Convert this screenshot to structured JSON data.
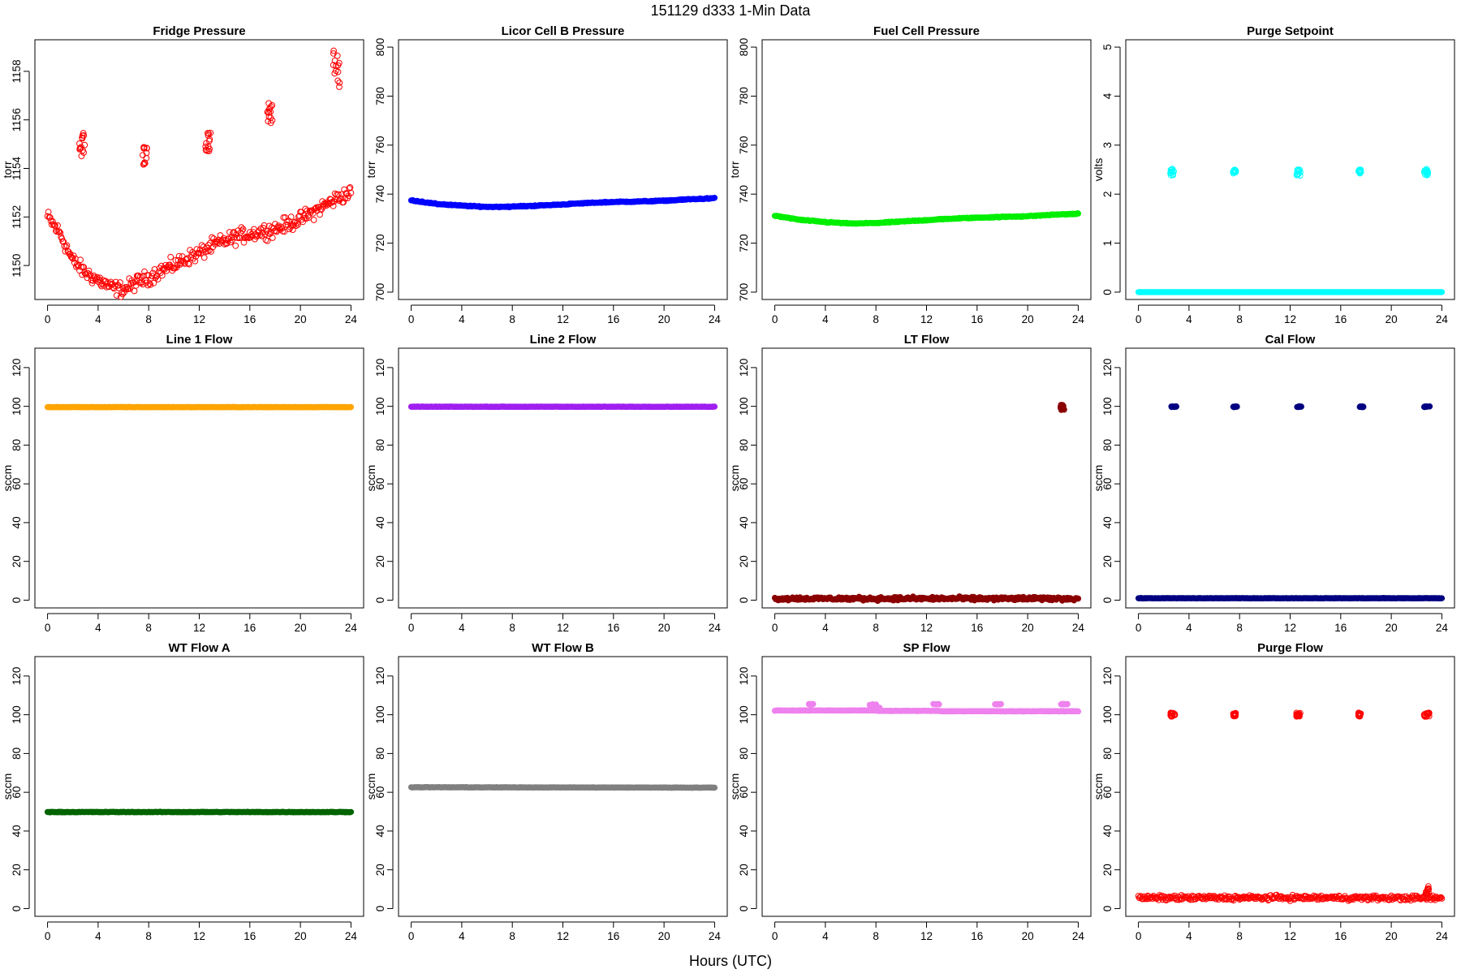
{
  "header": {
    "title": "151129   d333   1-Min Data",
    "xlabel": "Hours (UTC)"
  },
  "chart_data": [
    {
      "type": "scatter",
      "title": "Fridge Pressure",
      "ylabel": "torr",
      "color": "#ff0000",
      "fill": "none",
      "xlim": [
        -1,
        25
      ],
      "ylim": [
        1148.6,
        1159.3
      ],
      "xticks": [
        0,
        4,
        8,
        12,
        16,
        20,
        24
      ],
      "yticks": [
        1150,
        1152,
        1154,
        1156,
        1158
      ],
      "baseline": [
        [
          0,
          1152.0
        ],
        [
          1,
          1151.3
        ],
        [
          2,
          1150.2
        ],
        [
          3,
          1149.7
        ],
        [
          4,
          1149.4
        ],
        [
          5,
          1149.1
        ],
        [
          6,
          1149.0
        ],
        [
          7,
          1149.3
        ],
        [
          8,
          1149.5
        ],
        [
          9,
          1149.8
        ],
        [
          10,
          1150.0
        ],
        [
          11,
          1150.3
        ],
        [
          12,
          1150.5
        ],
        [
          13,
          1150.8
        ],
        [
          14,
          1151.0
        ],
        [
          15,
          1151.2
        ],
        [
          16,
          1151.3
        ],
        [
          17,
          1151.4
        ],
        [
          18,
          1151.5
        ],
        [
          19,
          1151.7
        ],
        [
          20,
          1151.9
        ],
        [
          21,
          1152.2
        ],
        [
          22,
          1152.5
        ],
        [
          23,
          1152.8
        ],
        [
          24,
          1153.0
        ]
      ],
      "spread": 0.45,
      "spikes": [
        {
          "x": [
            2.5,
            3.0
          ],
          "y": [
            1154.3,
            1155.5
          ]
        },
        {
          "x": [
            7.5,
            7.9
          ],
          "y": [
            1154.1,
            1154.9
          ]
        },
        {
          "x": [
            12.5,
            12.9
          ],
          "y": [
            1154.7,
            1155.5
          ]
        },
        {
          "x": [
            17.4,
            17.8
          ],
          "y": [
            1155.8,
            1156.8
          ]
        },
        {
          "x": [
            22.6,
            23.1
          ],
          "y": [
            1157.0,
            1159.0
          ]
        }
      ]
    },
    {
      "type": "scatter",
      "title": "Licor Cell B Pressure",
      "ylabel": "torr",
      "color": "#0000ff",
      "fill": "solid",
      "xlim": [
        -1,
        25
      ],
      "ylim": [
        697,
        803
      ],
      "xticks": [
        0,
        4,
        8,
        12,
        16,
        20,
        24
      ],
      "yticks": [
        700,
        720,
        740,
        760,
        780,
        800
      ],
      "baseline": [
        [
          0,
          737.5
        ],
        [
          2,
          736.0
        ],
        [
          4,
          735.3
        ],
        [
          6,
          734.8
        ],
        [
          8,
          734.9
        ],
        [
          10,
          735.3
        ],
        [
          12,
          735.8
        ],
        [
          14,
          736.4
        ],
        [
          16,
          736.8
        ],
        [
          18,
          737.0
        ],
        [
          20,
          737.3
        ],
        [
          22,
          737.9
        ],
        [
          24,
          738.3
        ]
      ],
      "spread": 0.3
    },
    {
      "type": "scatter",
      "title": "Fuel Cell Pressure",
      "ylabel": "torr",
      "color": "#00ee00",
      "fill": "solid",
      "xlim": [
        -1,
        25
      ],
      "ylim": [
        697,
        803
      ],
      "xticks": [
        0,
        4,
        8,
        12,
        16,
        20,
        24
      ],
      "yticks": [
        700,
        720,
        740,
        760,
        780,
        800
      ],
      "baseline": [
        [
          0,
          731.2
        ],
        [
          2,
          729.5
        ],
        [
          4,
          728.6
        ],
        [
          6,
          728.0
        ],
        [
          8,
          728.2
        ],
        [
          10,
          728.8
        ],
        [
          12,
          729.4
        ],
        [
          14,
          730.0
        ],
        [
          16,
          730.4
        ],
        [
          18,
          730.7
        ],
        [
          20,
          731.0
        ],
        [
          22,
          731.6
        ],
        [
          24,
          732.0
        ]
      ],
      "spread": 0.3
    },
    {
      "type": "scatter",
      "title": "Purge Setpoint",
      "ylabel": "volts",
      "color": "#00ffff",
      "fill": "solid",
      "xlim": [
        -1,
        25
      ],
      "ylim": [
        -0.15,
        5.15
      ],
      "xticks": [
        0,
        4,
        8,
        12,
        16,
        20,
        24
      ],
      "yticks": [
        0,
        1,
        2,
        3,
        4,
        5
      ],
      "baseline": [
        [
          0,
          0
        ],
        [
          24,
          0
        ]
      ],
      "spread": 0,
      "spikes": [
        {
          "x": [
            2.5,
            2.8
          ],
          "y": [
            2.38,
            2.52
          ],
          "open": true
        },
        {
          "x": [
            7.5,
            7.7
          ],
          "y": [
            2.42,
            2.5
          ],
          "open": true
        },
        {
          "x": [
            12.5,
            12.8
          ],
          "y": [
            2.38,
            2.52
          ],
          "open": true
        },
        {
          "x": [
            17.4,
            17.6
          ],
          "y": [
            2.42,
            2.5
          ],
          "open": true
        },
        {
          "x": [
            22.6,
            22.9
          ],
          "y": [
            2.38,
            2.52
          ],
          "open": true
        }
      ]
    },
    {
      "type": "scatter",
      "title": "Line 1 Flow",
      "ylabel": "sccm",
      "color": "#ffa500",
      "fill": "solid",
      "xlim": [
        -1,
        25
      ],
      "ylim": [
        -4,
        130
      ],
      "xticks": [
        0,
        4,
        8,
        12,
        16,
        20,
        24
      ],
      "yticks": [
        0,
        20,
        40,
        60,
        80,
        100,
        120
      ],
      "baseline": [
        [
          0,
          99.6
        ],
        [
          24,
          99.6
        ]
      ],
      "spread": 0.15
    },
    {
      "type": "scatter",
      "title": "Line 2 Flow",
      "ylabel": "sccm",
      "color": "#a020f0",
      "fill": "solid",
      "xlim": [
        -1,
        25
      ],
      "ylim": [
        -4,
        130
      ],
      "xticks": [
        0,
        4,
        8,
        12,
        16,
        20,
        24
      ],
      "yticks": [
        0,
        20,
        40,
        60,
        80,
        100,
        120
      ],
      "baseline": [
        [
          0,
          99.8
        ],
        [
          24,
          99.8
        ]
      ],
      "spread": 0.15
    },
    {
      "type": "scatter",
      "title": "LT Flow",
      "ylabel": "sccm",
      "color": "#8b0000",
      "fill": "solid",
      "xlim": [
        -1,
        25
      ],
      "ylim": [
        -4,
        130
      ],
      "xticks": [
        0,
        4,
        8,
        12,
        16,
        20,
        24
      ],
      "yticks": [
        0,
        20,
        40,
        60,
        80,
        100,
        120
      ],
      "baseline": [
        [
          0,
          0.8
        ],
        [
          24,
          0.8
        ]
      ],
      "spread": 1.3,
      "spikes": [
        {
          "x": [
            22.6,
            22.9
          ],
          "y": [
            98,
            101
          ]
        }
      ]
    },
    {
      "type": "scatter",
      "title": "Cal Flow",
      "ylabel": "sccm",
      "color": "#000080",
      "fill": "solid",
      "xlim": [
        -1,
        25
      ],
      "ylim": [
        -4,
        130
      ],
      "xticks": [
        0,
        4,
        8,
        12,
        16,
        20,
        24
      ],
      "yticks": [
        0,
        20,
        40,
        60,
        80,
        100,
        120
      ],
      "baseline": [
        [
          0,
          1.0
        ],
        [
          24,
          1.0
        ]
      ],
      "spread": 0.15,
      "spikes": [
        {
          "x": [
            2.6,
            3.0
          ],
          "y": [
            99.6,
            100
          ]
        },
        {
          "x": [
            7.5,
            7.8
          ],
          "y": [
            99.6,
            100
          ]
        },
        {
          "x": [
            12.5,
            12.9
          ],
          "y": [
            99.6,
            100
          ]
        },
        {
          "x": [
            17.5,
            17.8
          ],
          "y": [
            99.6,
            100
          ]
        },
        {
          "x": [
            22.6,
            23.1
          ],
          "y": [
            99.6,
            100
          ]
        }
      ]
    },
    {
      "type": "scatter",
      "title": "WT Flow A",
      "ylabel": "sccm",
      "color": "#006400",
      "fill": "solid",
      "xlim": [
        -1,
        25
      ],
      "ylim": [
        -4,
        130
      ],
      "xticks": [
        0,
        4,
        8,
        12,
        16,
        20,
        24
      ],
      "yticks": [
        0,
        20,
        40,
        60,
        80,
        100,
        120
      ],
      "baseline": [
        [
          0,
          49.8
        ],
        [
          24,
          49.8
        ]
      ],
      "spread": 0.2
    },
    {
      "type": "scatter",
      "title": "WT Flow B",
      "ylabel": "sccm",
      "color": "#808080",
      "fill": "solid",
      "xlim": [
        -1,
        25
      ],
      "ylim": [
        -4,
        130
      ],
      "xticks": [
        0,
        4,
        8,
        12,
        16,
        20,
        24
      ],
      "yticks": [
        0,
        20,
        40,
        60,
        80,
        100,
        120
      ],
      "baseline": [
        [
          0,
          62.6
        ],
        [
          24,
          62.4
        ]
      ],
      "spread": 0.15
    },
    {
      "type": "scatter",
      "title": "SP Flow",
      "ylabel": "sccm",
      "color": "#ee82ee",
      "fill": "solid",
      "xlim": [
        -1,
        25
      ],
      "ylim": [
        -4,
        130
      ],
      "xticks": [
        0,
        4,
        8,
        12,
        16,
        20,
        24
      ],
      "yticks": [
        0,
        20,
        40,
        60,
        80,
        100,
        120
      ],
      "baseline": [
        [
          0,
          102.2
        ],
        [
          8,
          102.2
        ],
        [
          8.2,
          102.0
        ],
        [
          13,
          102.0
        ],
        [
          13.2,
          101.8
        ],
        [
          24,
          101.8
        ]
      ],
      "spread": 0.15,
      "spikes": [
        {
          "x": [
            2.6,
            3.1
          ],
          "y": [
            105.3,
            105.6
          ]
        },
        {
          "x": [
            7.5,
            8.3
          ],
          "y": [
            103.5,
            105.6
          ]
        },
        {
          "x": [
            12.5,
            13.0
          ],
          "y": [
            105.3,
            105.6
          ]
        },
        {
          "x": [
            17.4,
            17.9
          ],
          "y": [
            105.3,
            105.6
          ]
        },
        {
          "x": [
            22.5,
            23.2
          ],
          "y": [
            105.3,
            105.6
          ]
        }
      ]
    },
    {
      "type": "scatter",
      "title": "Purge Flow",
      "ylabel": "sccm",
      "color": "#ff0000",
      "fill": "none",
      "xlim": [
        -1,
        25
      ],
      "ylim": [
        -4,
        130
      ],
      "xticks": [
        0,
        4,
        8,
        12,
        16,
        20,
        24
      ],
      "yticks": [
        0,
        20,
        40,
        60,
        80,
        100,
        120
      ],
      "baseline": [
        [
          0,
          5.5
        ],
        [
          12,
          5.6
        ],
        [
          24,
          5.4
        ]
      ],
      "spread": 1.8,
      "spikes": [
        {
          "x": [
            2.5,
            2.9
          ],
          "y": [
            99,
            101
          ]
        },
        {
          "x": [
            7.5,
            7.7
          ],
          "y": [
            99,
            101
          ]
        },
        {
          "x": [
            12.5,
            12.8
          ],
          "y": [
            99,
            101
          ]
        },
        {
          "x": [
            17.4,
            17.6
          ],
          "y": [
            99,
            101
          ]
        },
        {
          "x": [
            22.6,
            23.0
          ],
          "y": [
            99,
            101
          ]
        },
        {
          "x": [
            22.7,
            23.0
          ],
          "y": [
            7,
            12
          ]
        }
      ]
    }
  ]
}
